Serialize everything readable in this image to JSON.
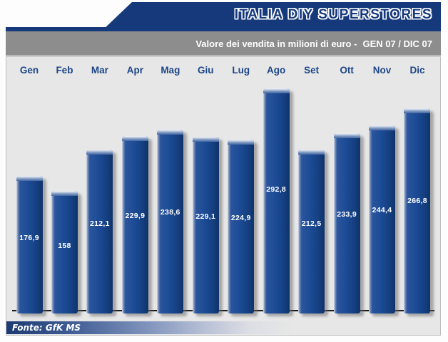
{
  "header": {
    "title": "ITALIA DIY SUPERSTORES",
    "subtitle": "Valore dei vendita in milioni di euro -",
    "subtitle_range": "GEN 07 / DIC 07"
  },
  "footer": {
    "source": "Fonte: GfK MS"
  },
  "colors": {
    "banner_blue": "#16397b",
    "bar_blue": "#1b4a94",
    "subtitle_gray": "#8d8d8d",
    "chart_background": "#e7e7e7",
    "month_label_navy": "#1c4688",
    "value_label_white": "#ffffff"
  },
  "chart_data": {
    "type": "bar",
    "title": "ITALIA DIY SUPERSTORES",
    "subtitle": "Valore dei vendita in milioni di euro -  GEN 07 / DIC 07",
    "categories": [
      "Gen",
      "Feb",
      "Mar",
      "Apr",
      "Mag",
      "Giu",
      "Lug",
      "Ago",
      "Set",
      "Ott",
      "Nov",
      "Dic"
    ],
    "values": [
      176.9,
      158,
      212.1,
      229.9,
      238.6,
      229.1,
      224.9,
      292.8,
      212.5,
      233.9,
      244.4,
      266.8
    ],
    "value_labels": [
      "176,9",
      "158",
      "212,1",
      "229,9",
      "238,6",
      "229,1",
      "224,9",
      "292,8",
      "212,5",
      "233,9",
      "244,4",
      "266,8"
    ],
    "xlabel": "",
    "ylabel": "",
    "ylim": [
      0,
      300
    ],
    "grid": false,
    "legend": "none",
    "source": "Fonte: GfK MS"
  }
}
